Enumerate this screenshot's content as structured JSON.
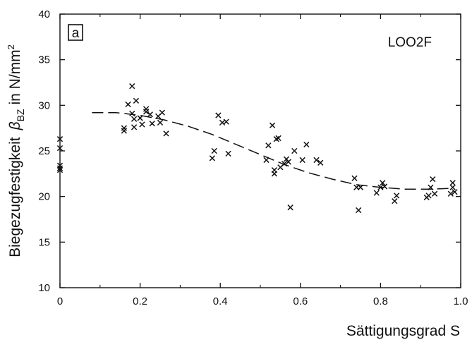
{
  "chart_data": {
    "type": "scatter",
    "panel_label": "a",
    "series_label": "LOO2F",
    "xlabel": "Sättigungsgrad  S",
    "ylabel": "Biegezugfestigkeit  βBZ in N/mm²",
    "ylabel_parts": {
      "prefix": "Biegezugfestigkeit",
      "symbol": "β",
      "subscript": "BZ",
      "unit": "in N/mm",
      "exponent": "2"
    },
    "xlim": [
      0,
      1.0
    ],
    "ylim": [
      10,
      40
    ],
    "x_ticks": [
      0,
      0.2,
      0.4,
      0.6,
      0.8,
      1.0
    ],
    "x_tick_labels": [
      "0",
      "0.2",
      "0.4",
      "0.6",
      "0.8",
      "1.0"
    ],
    "y_ticks": [
      10,
      15,
      20,
      25,
      30,
      35,
      40
    ],
    "y_tick_labels": [
      "10",
      "15",
      "20",
      "25",
      "30",
      "35",
      "40"
    ],
    "grid": false,
    "marker": "x",
    "points": [
      [
        0.0,
        26.3
      ],
      [
        0.0,
        25.3
      ],
      [
        0.0,
        23.4
      ],
      [
        0.0,
        23.1
      ],
      [
        0.0,
        22.9
      ],
      [
        0.16,
        27.5
      ],
      [
        0.16,
        27.2
      ],
      [
        0.17,
        30.1
      ],
      [
        0.18,
        32.1
      ],
      [
        0.18,
        29.1
      ],
      [
        0.185,
        28.5
      ],
      [
        0.19,
        30.5
      ],
      [
        0.185,
        27.6
      ],
      [
        0.2,
        28.6
      ],
      [
        0.205,
        27.9
      ],
      [
        0.215,
        29.6
      ],
      [
        0.215,
        29.3
      ],
      [
        0.225,
        29.0
      ],
      [
        0.23,
        28.0
      ],
      [
        0.245,
        28.8
      ],
      [
        0.25,
        28.1
      ],
      [
        0.255,
        29.2
      ],
      [
        0.265,
        26.9
      ],
      [
        0.38,
        24.2
      ],
      [
        0.385,
        25.0
      ],
      [
        0.395,
        28.9
      ],
      [
        0.405,
        28.1
      ],
      [
        0.415,
        28.2
      ],
      [
        0.42,
        24.7
      ],
      [
        0.515,
        24.0
      ],
      [
        0.52,
        25.6
      ],
      [
        0.53,
        27.8
      ],
      [
        0.535,
        22.9
      ],
      [
        0.535,
        22.5
      ],
      [
        0.54,
        26.3
      ],
      [
        0.545,
        26.4
      ],
      [
        0.55,
        23.2
      ],
      [
        0.56,
        23.6
      ],
      [
        0.565,
        24.1
      ],
      [
        0.57,
        23.8
      ],
      [
        0.575,
        18.8
      ],
      [
        0.585,
        25.0
      ],
      [
        0.605,
        24.0
      ],
      [
        0.615,
        25.7
      ],
      [
        0.64,
        24.0
      ],
      [
        0.65,
        23.7
      ],
      [
        0.735,
        22.0
      ],
      [
        0.74,
        21.0
      ],
      [
        0.745,
        18.5
      ],
      [
        0.75,
        21.0
      ],
      [
        0.79,
        20.4
      ],
      [
        0.8,
        21.0
      ],
      [
        0.805,
        21.5
      ],
      [
        0.81,
        21.1
      ],
      [
        0.835,
        19.5
      ],
      [
        0.84,
        20.1
      ],
      [
        0.915,
        19.9
      ],
      [
        0.92,
        20.1
      ],
      [
        0.925,
        21.0
      ],
      [
        0.93,
        21.9
      ],
      [
        0.935,
        20.3
      ],
      [
        0.975,
        20.3
      ],
      [
        0.98,
        21.0
      ],
      [
        0.98,
        21.5
      ],
      [
        0.985,
        20.5
      ]
    ],
    "trend_curve": [
      [
        0.08,
        29.2
      ],
      [
        0.14,
        29.2
      ],
      [
        0.2,
        28.9
      ],
      [
        0.26,
        28.4
      ],
      [
        0.32,
        27.7
      ],
      [
        0.38,
        26.8
      ],
      [
        0.44,
        25.7
      ],
      [
        0.5,
        24.6
      ],
      [
        0.56,
        23.5
      ],
      [
        0.62,
        22.6
      ],
      [
        0.68,
        21.9
      ],
      [
        0.74,
        21.3
      ],
      [
        0.8,
        21.0
      ],
      [
        0.86,
        20.8
      ],
      [
        0.92,
        20.8
      ],
      [
        0.98,
        20.9
      ]
    ]
  }
}
